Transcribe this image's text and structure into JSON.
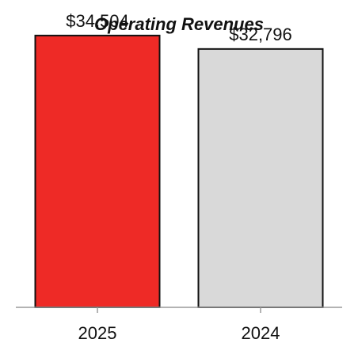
{
  "chart_data": {
    "type": "bar",
    "title": "Operating Revenues",
    "xlabel": "",
    "ylabel": "",
    "categories": [
      "2025",
      "2024"
    ],
    "values": [
      34504,
      32796
    ],
    "value_labels": [
      "$34,504",
      "$32,796"
    ],
    "colors": [
      "#ee2a26",
      "#d9d9d9"
    ],
    "bar_stroke": "#111111",
    "axis_color": "#9a9a9a",
    "ylim": [
      0,
      36500
    ],
    "grid": false,
    "legend": "none"
  }
}
